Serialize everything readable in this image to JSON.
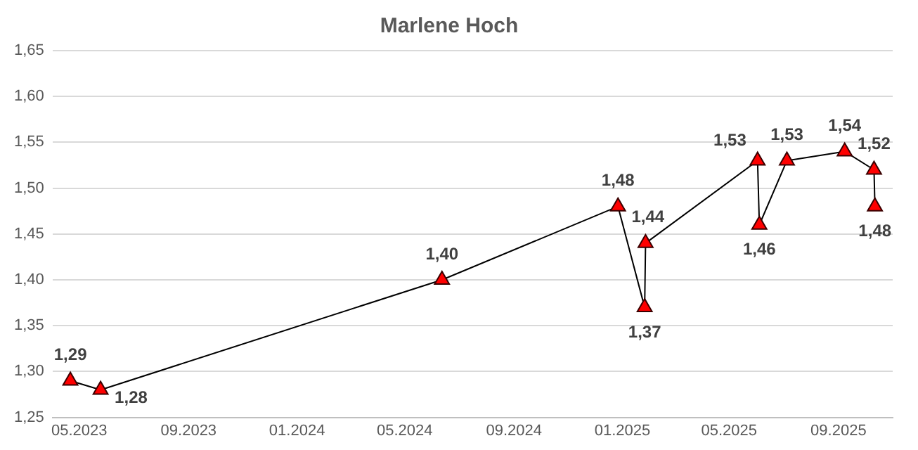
{
  "chart_data": {
    "type": "line",
    "title": "Marlene Hoch",
    "x": [
      "2023-04-21",
      "2023-05-25",
      "2024-06-12",
      "2024-12-27",
      "2025-01-26",
      "2025-01-27",
      "2025-06-02",
      "2025-06-04",
      "2025-07-05",
      "2025-09-08",
      "2025-10-11",
      "2025-10-12"
    ],
    "series": [
      {
        "color": "#ff0000",
        "values": [
          1.29,
          1.28,
          1.4,
          1.48,
          1.37,
          1.44,
          1.53,
          1.46,
          1.53,
          1.54,
          1.52,
          1.48
        ],
        "value_labels": [
          "1,29",
          "1,28",
          "1,40",
          "1,48",
          "1,37",
          "1,44",
          "1,53",
          "1,46",
          "1,53",
          "1,54",
          "1,52",
          "1,48"
        ]
      }
    ],
    "xlim": [
      "2023-04-01",
      "2025-11-01"
    ],
    "xticks": [
      {
        "value": "2023-05-01",
        "label": "05.2023"
      },
      {
        "value": "2023-09-01",
        "label": "09.2023"
      },
      {
        "value": "2024-01-01",
        "label": "01.2024"
      },
      {
        "value": "2024-05-01",
        "label": "05.2024"
      },
      {
        "value": "2024-09-01",
        "label": "09.2024"
      },
      {
        "value": "2025-01-01",
        "label": "01.2025"
      },
      {
        "value": "2025-05-01",
        "label": "05.2025"
      },
      {
        "value": "2025-09-01",
        "label": "09.2025"
      }
    ],
    "ylim": [
      1.25,
      1.65
    ],
    "yticks": [
      {
        "value": 1.25,
        "label": "1,25"
      },
      {
        "value": 1.3,
        "label": "1,30"
      },
      {
        "value": 1.35,
        "label": "1,35"
      },
      {
        "value": 1.4,
        "label": "1,40"
      },
      {
        "value": 1.45,
        "label": "1,45"
      },
      {
        "value": 1.5,
        "label": "1,50"
      },
      {
        "value": 1.55,
        "label": "1,55"
      },
      {
        "value": 1.6,
        "label": "1,60"
      },
      {
        "value": 1.65,
        "label": "1,65"
      }
    ],
    "grid": "y",
    "legend": false,
    "marker": "triangle",
    "line_style": "solid"
  }
}
